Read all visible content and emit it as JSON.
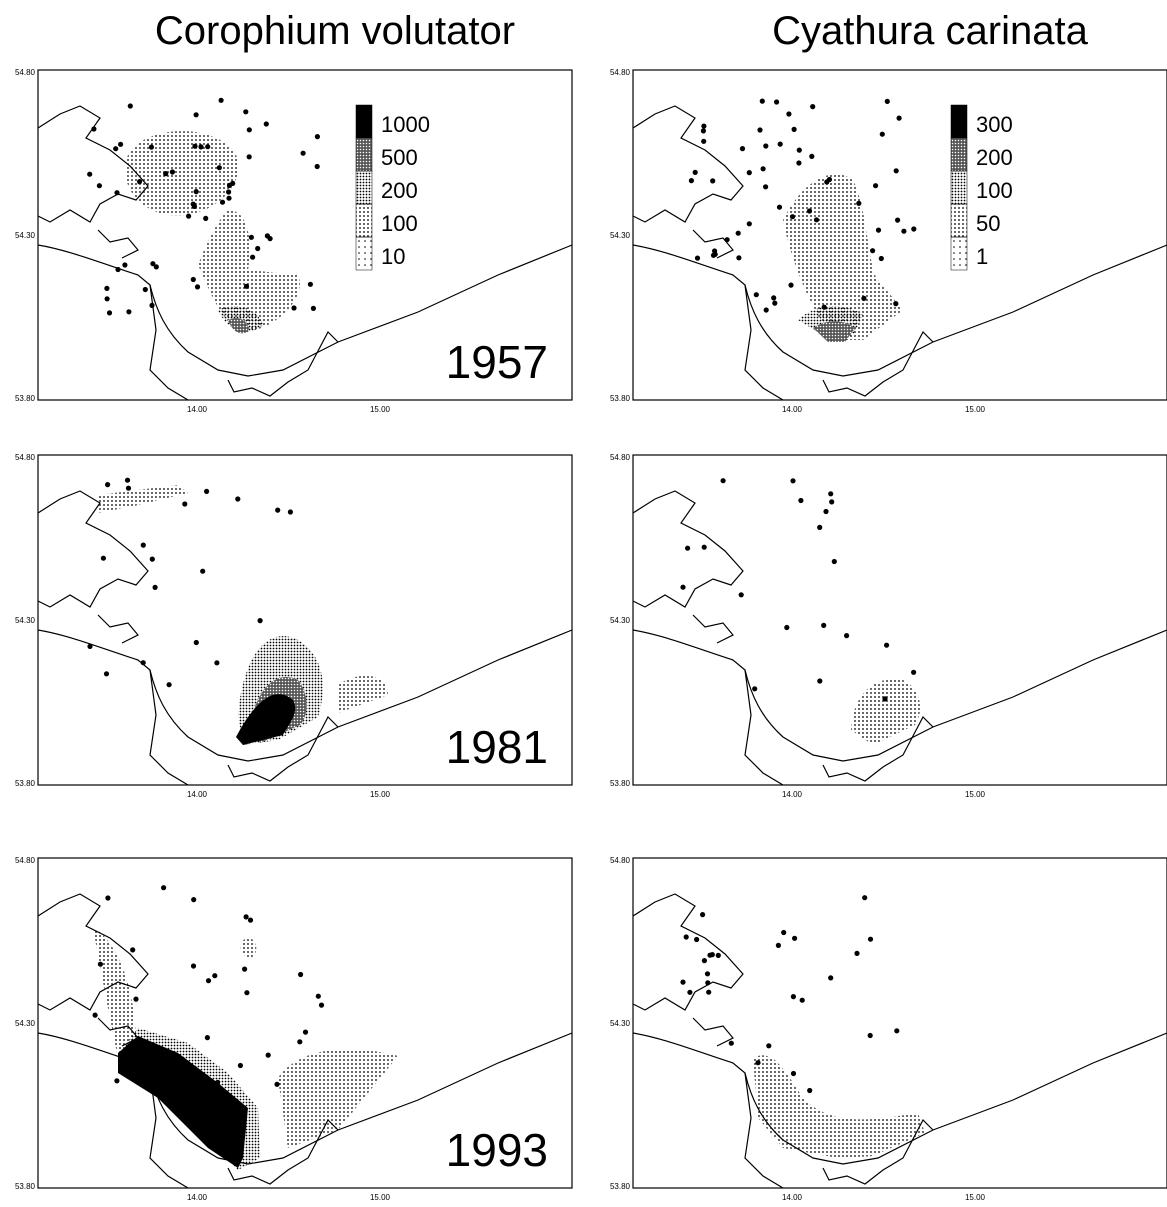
{
  "columns": [
    {
      "title": "Corophium volutator",
      "legend": [
        "1000",
        "500",
        "200",
        "100",
        "10"
      ],
      "panels": [
        {
          "year": "1957"
        },
        {
          "year": "1981"
        },
        {
          "year": "1993"
        }
      ]
    },
    {
      "title": "Cyathura carinata",
      "legend": [
        "300",
        "200",
        "100",
        "50",
        "1"
      ]
    }
  ],
  "axes": {
    "y_labels": [
      "54.80",
      "54.30",
      "53.80"
    ],
    "x_labels": [
      "14.00",
      "15.00"
    ]
  }
}
